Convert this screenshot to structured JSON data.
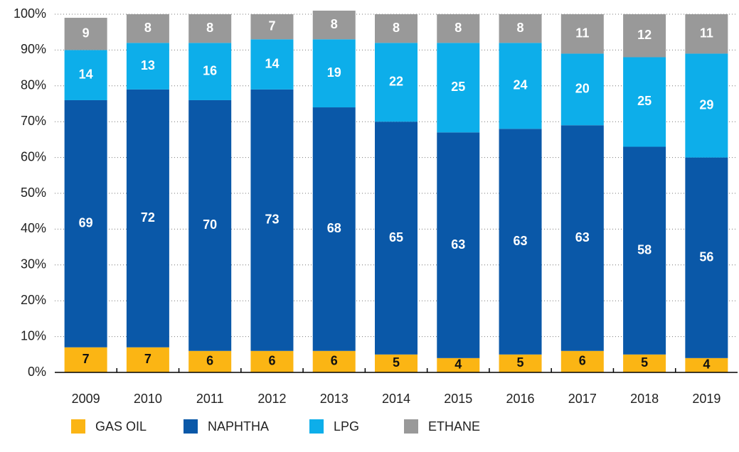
{
  "chart_data": {
    "type": "stacked_bar",
    "categories": [
      "2009",
      "2010",
      "2011",
      "2012",
      "2013",
      "2014",
      "2015",
      "2016",
      "2017",
      "2018",
      "2019"
    ],
    "series": [
      {
        "name": "GAS OIL",
        "color": "#fbb514",
        "values": [
          7,
          7,
          6,
          6,
          6,
          5,
          4,
          5,
          6,
          5,
          4
        ]
      },
      {
        "name": "NAPHTHA",
        "color": "#0a58a8",
        "values": [
          69,
          72,
          70,
          73,
          68,
          65,
          63,
          63,
          63,
          58,
          56
        ]
      },
      {
        "name": "LPG",
        "color": "#0daeea",
        "values": [
          14,
          13,
          16,
          14,
          19,
          22,
          25,
          24,
          20,
          25,
          29
        ]
      },
      {
        "name": "ETHANE",
        "color": "#999999",
        "values": [
          9,
          8,
          8,
          7,
          8,
          8,
          8,
          8,
          11,
          12,
          11
        ]
      }
    ],
    "ylim": [
      0,
      100
    ],
    "yticks": [
      {
        "value": 0,
        "label": "0%"
      },
      {
        "value": 10,
        "label": "10%"
      },
      {
        "value": 20,
        "label": "20%"
      },
      {
        "value": 30,
        "label": "30%"
      },
      {
        "value": 40,
        "label": "40%"
      },
      {
        "value": 50,
        "label": "50%"
      },
      {
        "value": 60,
        "label": "60%"
      },
      {
        "value": 70,
        "label": "70%"
      },
      {
        "value": 80,
        "label": "80%"
      },
      {
        "value": 90,
        "label": "90%"
      },
      {
        "value": 100,
        "label": "100%"
      }
    ],
    "grid": true
  }
}
